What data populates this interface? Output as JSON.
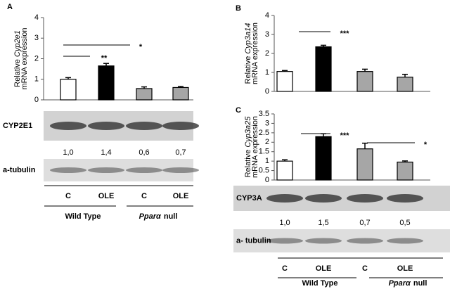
{
  "chart_data": [
    {
      "type": "bar",
      "panel": "A",
      "ylabel": {
        "prefix": "Relative",
        "gene": "Cyp2e1",
        "line2": "mRNA expression"
      },
      "values": [
        1.0,
        1.65,
        0.55,
        0.6
      ],
      "errors": [
        0.08,
        0.12,
        0.08,
        0.05
      ],
      "colors": [
        "#ffffff",
        "#000000",
        "#a6a6a6",
        "#a6a6a6"
      ],
      "ylim": [
        0,
        4
      ],
      "yticks": [
        0,
        1,
        2,
        3,
        4
      ],
      "annotations": [
        "**",
        "*"
      ],
      "blots": [
        {
          "label": "CYP2E1",
          "quantification": [
            "1,0",
            "1,4",
            "0,6",
            "0,7"
          ]
        },
        {
          "label": "a-tubulin"
        }
      ],
      "categories": [
        "C",
        "OLE",
        "C",
        "OLE"
      ],
      "groups": [
        {
          "name": "Wild Type"
        },
        {
          "name": "Ppar",
          "greek": "α",
          "suffix": "null"
        }
      ]
    },
    {
      "type": "bar",
      "panel": "B",
      "ylabel": {
        "prefix": "Relative",
        "gene": "Cyp3a14",
        "line2": "mRNA expression"
      },
      "values": [
        1.05,
        2.35,
        1.05,
        0.75
      ],
      "errors": [
        0.05,
        0.08,
        0.12,
        0.15
      ],
      "colors": [
        "#ffffff",
        "#000000",
        "#a6a6a6",
        "#a6a6a6"
      ],
      "ylim": [
        0,
        4
      ],
      "yticks": [
        0,
        1,
        2,
        3,
        4
      ],
      "annotations": [
        "***"
      ]
    },
    {
      "type": "bar",
      "panel": "C",
      "ylabel": {
        "prefix": "Relative",
        "gene": "Cyp3a25",
        "line2": "mRNA expression"
      },
      "values": [
        1.0,
        2.3,
        1.65,
        0.95
      ],
      "errors": [
        0.07,
        0.15,
        0.3,
        0.06
      ],
      "colors": [
        "#ffffff",
        "#000000",
        "#a6a6a6",
        "#a6a6a6"
      ],
      "ylim": [
        0,
        3.5
      ],
      "yticks": [
        0,
        0.5,
        1,
        1.5,
        2,
        2.5,
        3,
        3.5
      ],
      "annotations": [
        "***",
        "*"
      ],
      "blots": [
        {
          "label": "CYP3A",
          "quantification": [
            "1,0",
            "1,5",
            "0,7",
            "0,5"
          ]
        },
        {
          "label": "a- tubulin"
        }
      ],
      "categories": [
        "C",
        "OLE",
        "C",
        "OLE"
      ],
      "groups": [
        {
          "name": "Wild Type"
        },
        {
          "name": "Ppar",
          "greek": "α",
          "suffix": "null"
        }
      ]
    }
  ]
}
